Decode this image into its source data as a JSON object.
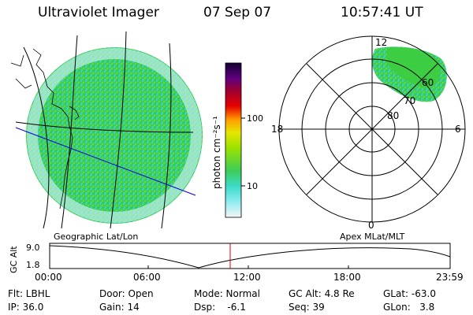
{
  "header": {
    "instrument": "Ultraviolet Imager",
    "date": "07 Sep 07",
    "time": "10:57:41 UT"
  },
  "colorbar": {
    "label": "photon cm⁻²s⁻¹",
    "ticks": [
      "100",
      "10"
    ]
  },
  "geo_panel": {
    "label": "Geographic Lat/Lon"
  },
  "polar_panel": {
    "label": "Apex  MLat/MLT",
    "mlt_labels": {
      "top": "12",
      "bottom": "0",
      "left": "18",
      "right": "6"
    },
    "lat_labels": [
      "60",
      "70",
      "80"
    ]
  },
  "altitude_plot": {
    "axis_label": "GC Alt",
    "y_ticks": [
      "9.0",
      "1.8"
    ],
    "x_ticks": [
      "00:00",
      "06:00",
      "12:00",
      "18:00",
      "23:59"
    ]
  },
  "info": {
    "filter": "Flt: LBHL",
    "door": "Door: Open",
    "mode": "Mode: Normal",
    "gc_alt": "GC Alt: 4.8 Re",
    "glat": "GLat: -63.0",
    "ip": "IP: 36.0",
    "gain": "Gain: 14",
    "dsp": "Dsp:    -6.1",
    "seq": "Seq: 39",
    "glon": "GLon:   3.8"
  },
  "colors": {
    "aurora_green": "#3ccd3c",
    "aurora_cyan": "#3cdcc8",
    "track_red": "#dd0000",
    "meridian_blue": "#0000dd"
  }
}
